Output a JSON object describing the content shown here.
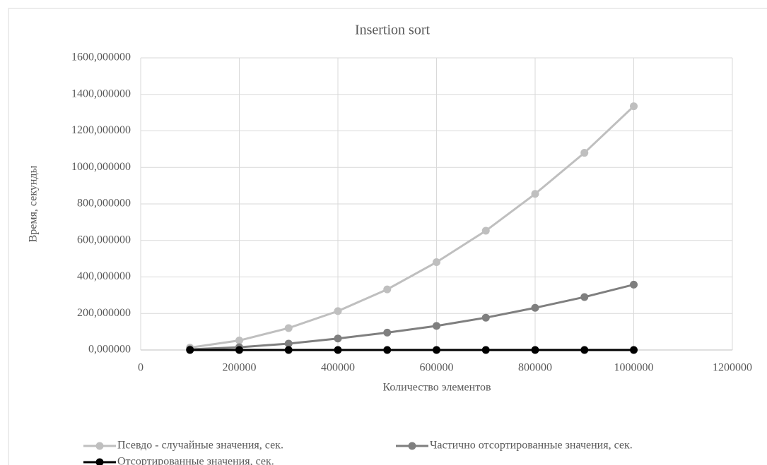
{
  "chart_data": {
    "type": "line",
    "title": "Insertion sort",
    "x_label": "Количество элементов",
    "y_label": "Время, секунды",
    "x": [
      100000,
      200000,
      300000,
      400000,
      500000,
      600000,
      700000,
      800000,
      900000,
      1000000
    ],
    "series": [
      {
        "name": "Псевдо - случайные значения, сек.",
        "color": "#bfbfbf",
        "values": [
          13,
          52,
          120,
          213,
          332,
          481,
          653,
          855,
          1080,
          1335
        ]
      },
      {
        "name": "Частично отсортированные значения, сек.",
        "color": "#7f7f7f",
        "values": [
          4,
          15,
          35,
          63,
          95,
          132,
          177,
          231,
          290,
          358
        ]
      },
      {
        "name": "Отсортированные значения, сек.",
        "color": "#000000",
        "values": [
          0,
          0,
          0,
          0,
          0,
          0,
          0,
          0,
          0,
          0
        ]
      }
    ],
    "xlim": [
      0,
      1200000
    ],
    "xticks": [
      0,
      200000,
      400000,
      600000,
      800000,
      1000000,
      1200000
    ],
    "ylim": [
      0,
      1600
    ],
    "yticks": [
      {
        "value": 0,
        "label": "0,000000"
      },
      {
        "value": 200,
        "label": "200,000000"
      },
      {
        "value": 400,
        "label": "400,000000"
      },
      {
        "value": 600,
        "label": "600,000000"
      },
      {
        "value": 800,
        "label": "800,000000"
      },
      {
        "value": 1000,
        "label": "1000,000000"
      },
      {
        "value": 1200,
        "label": "1200,000000"
      },
      {
        "value": 1400,
        "label": "1400,000000"
      },
      {
        "value": 1600,
        "label": "1600,000000"
      }
    ],
    "grid": true,
    "legend": "bottom"
  }
}
